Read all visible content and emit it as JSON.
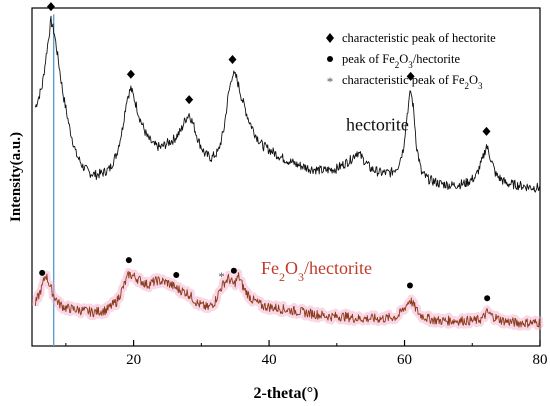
{
  "chart_data": {
    "type": "line",
    "xlabel": "2-theta(°)",
    "ylabel": "Intensity(a.u.)",
    "xlim": [
      5,
      80
    ],
    "xticks": [
      20,
      40,
      60,
      80
    ],
    "grid": false,
    "legend_position": "top-right",
    "legend": [
      {
        "marker": "diamond",
        "text": "characteristic peak of hectorite"
      },
      {
        "marker": "circle",
        "text": "peak of Fe2O3/hectorite"
      },
      {
        "marker": "asterisk",
        "text": "characteristic peak of Fe2O3"
      }
    ],
    "series": [
      {
        "name": "hectorite",
        "color": "#111111",
        "x": [
          5.5,
          6.5,
          7.2,
          7.8,
          8.3,
          8.9,
          9.6,
          10.5,
          11.5,
          12.5,
          13.5,
          14.5,
          15.5,
          16.5,
          17.5,
          18.3,
          19.0,
          19.6,
          20.2,
          21.0,
          22.0,
          23.0,
          24.0,
          25.0,
          26.0,
          27.0,
          27.6,
          28.2,
          28.8,
          29.6,
          30.5,
          31.5,
          32.5,
          33.3,
          34.0,
          34.6,
          35.2,
          36.0,
          37.0,
          38.0,
          39.0,
          40.0,
          42.0,
          44.0,
          46.0,
          48.0,
          50.0,
          52.0,
          53.0,
          54.0,
          55.0,
          56.5,
          58.0,
          59.0,
          59.8,
          60.4,
          60.9,
          61.3,
          61.8,
          62.5,
          63.5,
          65.0,
          67.0,
          69.0,
          70.5,
          71.5,
          72.1,
          72.7,
          73.5,
          75.0,
          77.0,
          79.0,
          80.0
        ],
        "y": [
          0.58,
          0.68,
          0.85,
          0.99,
          0.93,
          0.8,
          0.64,
          0.49,
          0.36,
          0.3,
          0.27,
          0.26,
          0.27,
          0.29,
          0.36,
          0.47,
          0.62,
          0.67,
          0.61,
          0.52,
          0.44,
          0.4,
          0.39,
          0.41,
          0.43,
          0.47,
          0.52,
          0.55,
          0.5,
          0.42,
          0.36,
          0.34,
          0.37,
          0.47,
          0.64,
          0.74,
          0.72,
          0.62,
          0.52,
          0.45,
          0.4,
          0.38,
          0.34,
          0.31,
          0.29,
          0.28,
          0.29,
          0.33,
          0.37,
          0.33,
          0.29,
          0.27,
          0.27,
          0.3,
          0.38,
          0.55,
          0.66,
          0.58,
          0.39,
          0.27,
          0.24,
          0.22,
          0.21,
          0.22,
          0.25,
          0.33,
          0.4,
          0.34,
          0.26,
          0.22,
          0.21,
          0.2,
          0.2
        ]
      },
      {
        "name": "Fe2O3/hectorite",
        "color": "#8b3a1a",
        "x": [
          5.5,
          6.5,
          7.0,
          7.6,
          8.2,
          9.0,
          10.0,
          12.0,
          14.0,
          16.0,
          17.5,
          18.5,
          19.3,
          20.0,
          21.0,
          22.0,
          23.5,
          25.0,
          26.5,
          28.0,
          29.5,
          31.0,
          32.0,
          32.8,
          33.4,
          34.0,
          34.8,
          35.5,
          36.3,
          37.5,
          39.0,
          41.0,
          43.0,
          45.0,
          47.0,
          49.0,
          51.0,
          53.0,
          55.0,
          57.0,
          59.0,
          60.0,
          60.8,
          61.4,
          62.2,
          63.5,
          65.0,
          67.0,
          69.0,
          70.5,
          71.5,
          72.2,
          73.0,
          74.5,
          76.5,
          78.5,
          80.0
        ],
        "y": [
          -0.35,
          -0.27,
          -0.21,
          -0.26,
          -0.31,
          -0.35,
          -0.37,
          -0.38,
          -0.39,
          -0.38,
          -0.34,
          -0.27,
          -0.21,
          -0.22,
          -0.24,
          -0.26,
          -0.24,
          -0.25,
          -0.28,
          -0.3,
          -0.35,
          -0.37,
          -0.34,
          -0.28,
          -0.25,
          -0.23,
          -0.26,
          -0.22,
          -0.28,
          -0.33,
          -0.36,
          -0.37,
          -0.38,
          -0.39,
          -0.4,
          -0.41,
          -0.41,
          -0.42,
          -0.42,
          -0.42,
          -0.41,
          -0.37,
          -0.33,
          -0.36,
          -0.4,
          -0.42,
          -0.43,
          -0.43,
          -0.43,
          -0.43,
          -0.42,
          -0.39,
          -0.41,
          -0.43,
          -0.44,
          -0.44,
          -0.44
        ]
      }
    ],
    "markers": [
      {
        "series": "hectorite",
        "x": 7.8,
        "y": 0.99,
        "symbol": "diamond"
      },
      {
        "series": "hectorite",
        "x": 19.6,
        "y": 0.67,
        "symbol": "diamond"
      },
      {
        "series": "hectorite",
        "x": 28.2,
        "y": 0.55,
        "symbol": "diamond"
      },
      {
        "series": "hectorite",
        "x": 34.6,
        "y": 0.74,
        "symbol": "diamond"
      },
      {
        "series": "hectorite",
        "x": 60.9,
        "y": 0.66,
        "symbol": "diamond"
      },
      {
        "series": "hectorite",
        "x": 72.1,
        "y": 0.4,
        "symbol": "diamond"
      },
      {
        "series": "Fe2O3/hectorite",
        "x": 6.5,
        "y": -0.27,
        "symbol": "circle"
      },
      {
        "series": "Fe2O3/hectorite",
        "x": 19.3,
        "y": -0.21,
        "symbol": "circle"
      },
      {
        "series": "Fe2O3/hectorite",
        "x": 26.3,
        "y": -0.28,
        "symbol": "circle"
      },
      {
        "series": "Fe2O3/hectorite",
        "x": 33.0,
        "y": -0.28,
        "symbol": "asterisk"
      },
      {
        "series": "Fe2O3/hectorite",
        "x": 34.8,
        "y": -0.26,
        "symbol": "circle"
      },
      {
        "series": "Fe2O3/hectorite",
        "x": 60.8,
        "y": -0.33,
        "symbol": "circle"
      },
      {
        "series": "Fe2O3/hectorite",
        "x": 72.2,
        "y": -0.39,
        "symbol": "circle"
      }
    ],
    "annotations": [
      {
        "text": "hectorite",
        "x": 56,
        "y": 0.47,
        "color": "#111111"
      },
      {
        "text": "Fe2O3/hectorite",
        "x": 47,
        "y": -0.21,
        "color": "#c03a2a"
      }
    ],
    "reference_line": {
      "x": 8.2,
      "color": "#5a9fd4"
    }
  }
}
